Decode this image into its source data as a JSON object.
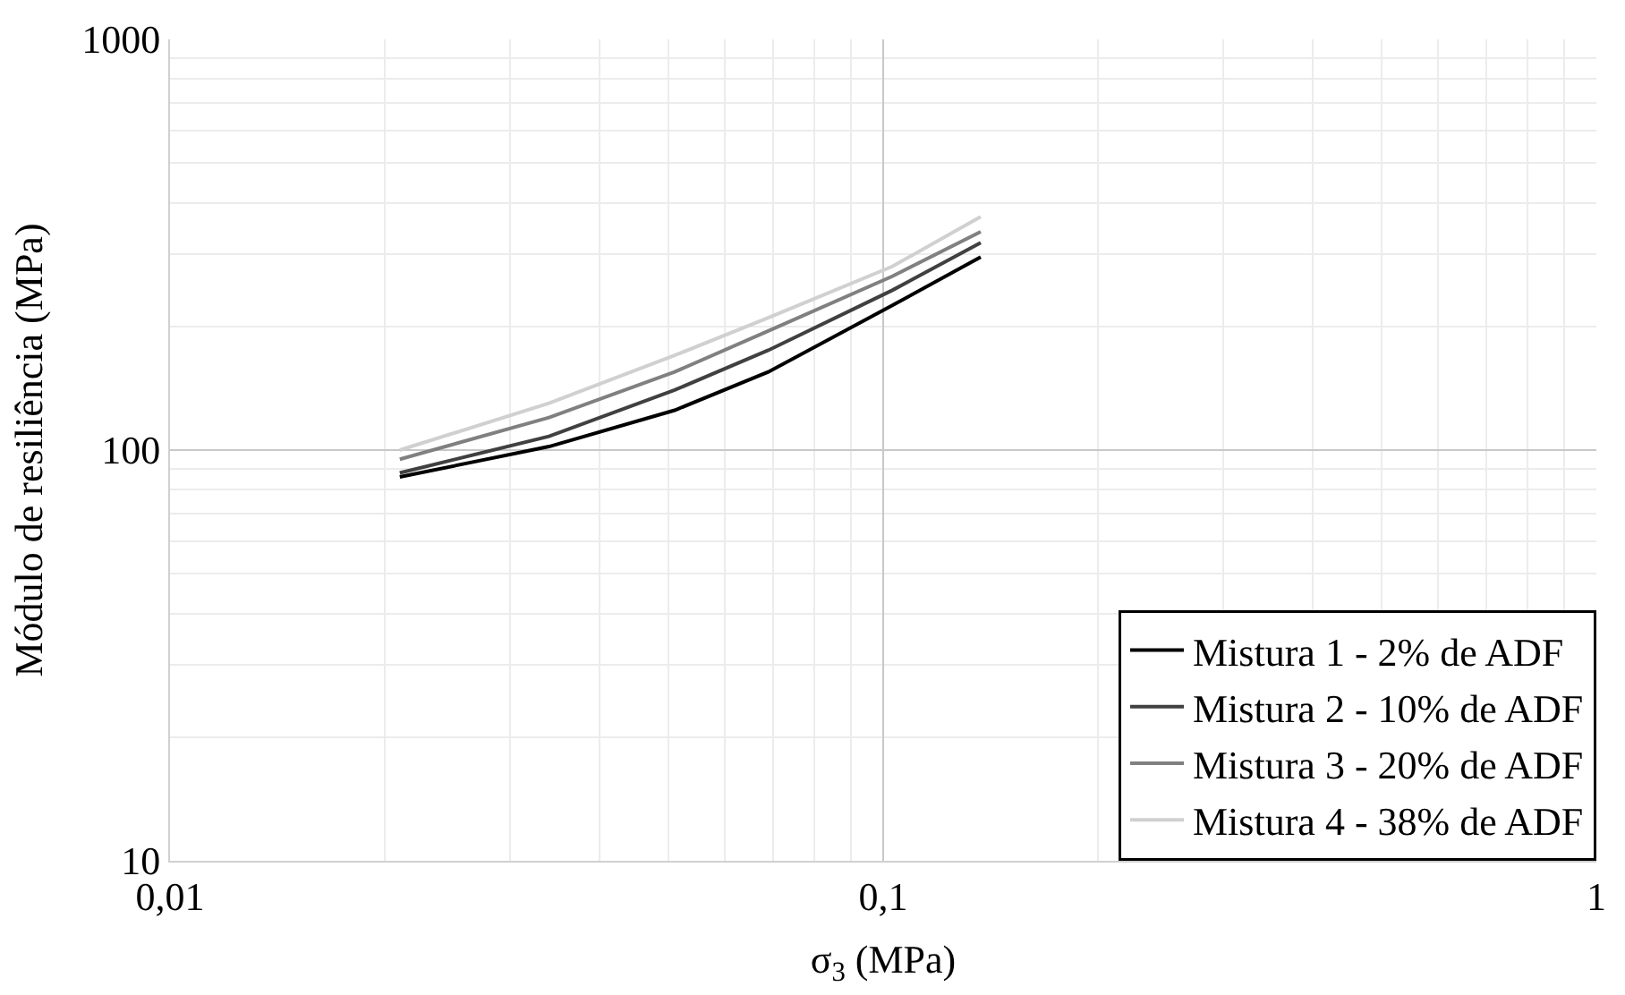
{
  "chart_data": {
    "type": "line",
    "xlabel": "σ$_{3}$ (MPa)",
    "ylabel": "Módulo de resiliência (MPa)",
    "log": "xy",
    "grid": true,
    "legend": "bottom right",
    "line_style": "solid",
    "marker": "none",
    "x": [
      0.021,
      0.034,
      0.051,
      0.069,
      0.103,
      0.137
    ],
    "xlim": [
      0.01,
      1
    ],
    "xticks": [
      {
        "value": 0.01,
        "label": "0,01"
      },
      {
        "value": 0.1,
        "label": "0,1"
      },
      {
        "value": 1,
        "label": "1"
      }
    ],
    "ylim": [
      10,
      1000
    ],
    "yticks": [
      10,
      100,
      1000
    ],
    "series": [
      {
        "name": "Mistura 1 - 2% de ADF",
        "color": "#000000",
        "values": [
          86,
          102,
          125,
          155,
          225,
          295
        ]
      },
      {
        "name": "Mistura 2 - 10% de ADF",
        "color": "#404040",
        "values": [
          88,
          108,
          140,
          175,
          245,
          320
        ]
      },
      {
        "name": "Mistura 3 - 20% de ADF",
        "color": "#808080",
        "values": [
          95,
          120,
          155,
          195,
          265,
          340
        ]
      },
      {
        "name": "Mistura 4 - 38% de ADF",
        "color": "#d0d0d0",
        "values": [
          100,
          130,
          170,
          210,
          280,
          370
        ]
      }
    ]
  }
}
